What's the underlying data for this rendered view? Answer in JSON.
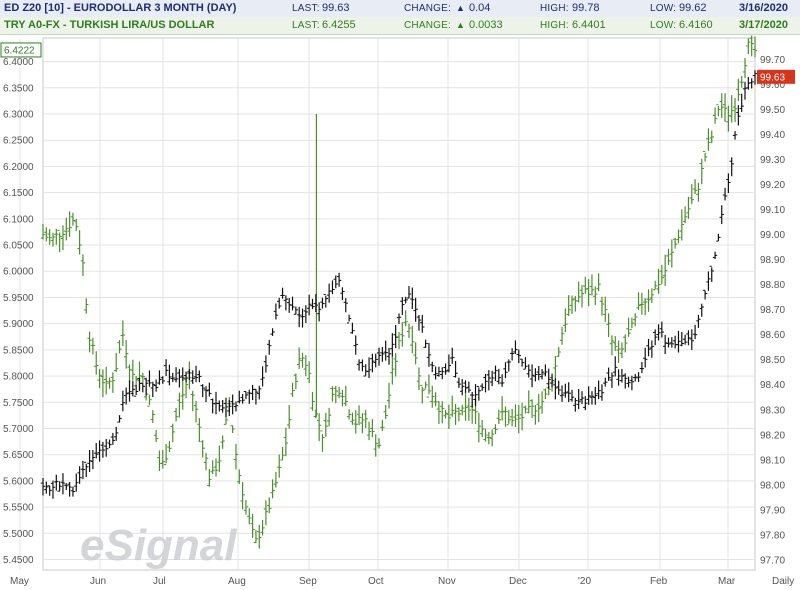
{
  "header_line1": {
    "symbol": "ED Z20 [10] - EURODOLLAR 3 MONTH (DAY)",
    "last_label": "LAST:",
    "last_value": "99.63",
    "change_label": "CHANGE:",
    "change_value": "0.04",
    "high_label": "HIGH:",
    "high_value": "99.78",
    "low_label": "LOW:",
    "low_value": "99.62",
    "date": "3/16/2020",
    "color": "#1f2d6e"
  },
  "header_line2": {
    "symbol": "TRY A0-FX - TURKISH LIRA/US DOLLAR",
    "last_label": "LAST:",
    "last_value": "6.4255",
    "change_label": "CHANGE:",
    "change_value": "0.0033",
    "high_label": "HIGH:",
    "high_value": "6.4401",
    "low_label": "LOW:",
    "low_value": "6.4160",
    "date": "3/17/2020",
    "color": "#2e7d1f"
  },
  "watermark": "eSignal",
  "chart_data": {
    "type": "line",
    "style": "ohlc-bars",
    "grid": true,
    "x_tick_labels": [
      "May",
      "Jun",
      "Jul",
      "Aug",
      "Sep",
      "Oct",
      "Nov",
      "Dec",
      "'20",
      "Feb",
      "Mar",
      "Daily"
    ],
    "left_axis": {
      "ticks": [
        "6.4000",
        "6.3500",
        "6.3000",
        "6.2500",
        "6.2000",
        "6.1500",
        "6.1000",
        "6.0500",
        "6.0000",
        "5.9500",
        "5.9000",
        "5.8500",
        "5.8000",
        "5.7500",
        "5.7000",
        "5.6500",
        "5.6000",
        "5.5500",
        "5.5000",
        "5.4500"
      ],
      "range": [
        5.43,
        6.445
      ],
      "current_tag": "6.4222"
    },
    "right_axis": {
      "ticks": [
        "99.70",
        "99.60",
        "99.50",
        "99.40",
        "99.30",
        "99.20",
        "99.10",
        "99.00",
        "98.90",
        "98.80",
        "98.70",
        "98.60",
        "98.50",
        "98.40",
        "98.30",
        "98.20",
        "98.10",
        "98.00",
        "97.90",
        "97.80",
        "97.70"
      ],
      "range": [
        97.66,
        99.785
      ],
      "current_tag": "99.63"
    },
    "series": [
      {
        "name": "TRY A0-FX - TURKISH LIRA/US DOLLAR",
        "axis": "left",
        "color": "#4a8f2a",
        "anchors": [
          [
            0,
            6.07
          ],
          [
            0.012,
            6.06
          ],
          [
            0.03,
            6.08
          ],
          [
            0.045,
            6.1
          ],
          [
            0.055,
            6.03
          ],
          [
            0.065,
            5.88
          ],
          [
            0.075,
            5.82
          ],
          [
            0.088,
            5.78
          ],
          [
            0.1,
            5.8
          ],
          [
            0.112,
            5.88
          ],
          [
            0.125,
            5.8
          ],
          [
            0.14,
            5.8
          ],
          [
            0.155,
            5.72
          ],
          [
            0.165,
            5.62
          ],
          [
            0.178,
            5.67
          ],
          [
            0.19,
            5.74
          ],
          [
            0.205,
            5.8
          ],
          [
            0.22,
            5.7
          ],
          [
            0.235,
            5.6
          ],
          [
            0.25,
            5.65
          ],
          [
            0.262,
            5.75
          ],
          [
            0.273,
            5.63
          ],
          [
            0.285,
            5.55
          ],
          [
            0.298,
            5.48
          ],
          [
            0.31,
            5.52
          ],
          [
            0.322,
            5.57
          ],
          [
            0.332,
            5.62
          ],
          [
            0.342,
            5.68
          ],
          [
            0.352,
            5.78
          ],
          [
            0.362,
            5.84
          ],
          [
            0.372,
            5.82
          ],
          [
            0.382,
            5.73
          ],
          [
            0.395,
            5.68
          ],
          [
            0.405,
            5.76
          ],
          [
            0.418,
            5.78
          ],
          [
            0.428,
            5.74
          ],
          [
            0.44,
            5.71
          ],
          [
            0.452,
            5.72
          ],
          [
            0.462,
            5.69
          ],
          [
            0.472,
            5.67
          ],
          [
            0.482,
            5.73
          ],
          [
            0.49,
            5.8
          ],
          [
            0.5,
            5.86
          ],
          [
            0.51,
            5.91
          ],
          [
            0.52,
            5.87
          ],
          [
            0.53,
            5.78
          ],
          [
            0.54,
            5.78
          ],
          [
            0.55,
            5.76
          ],
          [
            0.56,
            5.73
          ],
          [
            0.57,
            5.72
          ],
          [
            0.58,
            5.73
          ],
          [
            0.59,
            5.73
          ],
          [
            0.6,
            5.74
          ],
          [
            0.61,
            5.72
          ],
          [
            0.62,
            5.69
          ],
          [
            0.63,
            5.69
          ],
          [
            0.64,
            5.72
          ],
          [
            0.65,
            5.73
          ],
          [
            0.66,
            5.71
          ],
          [
            0.67,
            5.72
          ],
          [
            0.68,
            5.73
          ],
          [
            0.69,
            5.74
          ],
          [
            0.7,
            5.75
          ],
          [
            0.71,
            5.77
          ],
          [
            0.72,
            5.82
          ],
          [
            0.73,
            5.89
          ],
          [
            0.74,
            5.93
          ],
          [
            0.75,
            5.95
          ],
          [
            0.76,
            5.96
          ],
          [
            0.77,
            5.96
          ],
          [
            0.78,
            5.97
          ],
          [
            0.79,
            5.92
          ],
          [
            0.8,
            5.86
          ],
          [
            0.81,
            5.84
          ],
          [
            0.82,
            5.87
          ],
          [
            0.83,
            5.9
          ],
          [
            0.84,
            5.94
          ],
          [
            0.85,
            5.95
          ],
          [
            0.86,
            5.97
          ],
          [
            0.87,
            5.99
          ],
          [
            0.88,
            6.02
          ],
          [
            0.89,
            6.06
          ],
          [
            0.9,
            6.1
          ],
          [
            0.91,
            6.13
          ],
          [
            0.92,
            6.16
          ],
          [
            0.93,
            6.22
          ],
          [
            0.94,
            6.26
          ],
          [
            0.95,
            6.32
          ],
          [
            0.96,
            6.3
          ],
          [
            0.97,
            6.31
          ],
          [
            0.98,
            6.36
          ],
          [
            0.99,
            6.43
          ],
          [
            1.0,
            6.42
          ]
        ],
        "spikes": [
          [
            0.384,
            6.3
          ]
        ]
      },
      {
        "name": "ED Z20 [10] - EURODOLLAR 3 MONTH (DAY)",
        "axis": "right",
        "color": "#111111",
        "anchors": [
          [
            0,
            97.98
          ],
          [
            0.015,
            97.99
          ],
          [
            0.028,
            98.02
          ],
          [
            0.04,
            97.97
          ],
          [
            0.055,
            98.05
          ],
          [
            0.07,
            98.12
          ],
          [
            0.085,
            98.15
          ],
          [
            0.1,
            98.18
          ],
          [
            0.115,
            98.35
          ],
          [
            0.13,
            98.38
          ],
          [
            0.145,
            98.42
          ],
          [
            0.16,
            98.4
          ],
          [
            0.175,
            98.45
          ],
          [
            0.19,
            98.42
          ],
          [
            0.205,
            98.45
          ],
          [
            0.22,
            98.42
          ],
          [
            0.235,
            98.35
          ],
          [
            0.25,
            98.3
          ],
          [
            0.265,
            98.32
          ],
          [
            0.28,
            98.34
          ],
          [
            0.295,
            98.37
          ],
          [
            0.305,
            98.38
          ],
          [
            0.315,
            98.5
          ],
          [
            0.325,
            98.65
          ],
          [
            0.335,
            98.75
          ],
          [
            0.345,
            98.72
          ],
          [
            0.355,
            98.7
          ],
          [
            0.365,
            98.68
          ],
          [
            0.375,
            98.72
          ],
          [
            0.385,
            98.7
          ],
          [
            0.395,
            98.75
          ],
          [
            0.405,
            98.77
          ],
          [
            0.415,
            98.82
          ],
          [
            0.425,
            98.72
          ],
          [
            0.435,
            98.62
          ],
          [
            0.445,
            98.48
          ],
          [
            0.455,
            98.45
          ],
          [
            0.465,
            98.5
          ],
          [
            0.475,
            98.54
          ],
          [
            0.485,
            98.52
          ],
          [
            0.495,
            98.6
          ],
          [
            0.505,
            98.73
          ],
          [
            0.515,
            98.76
          ],
          [
            0.525,
            98.7
          ],
          [
            0.535,
            98.6
          ],
          [
            0.545,
            98.48
          ],
          [
            0.555,
            98.44
          ],
          [
            0.565,
            98.45
          ],
          [
            0.575,
            98.5
          ],
          [
            0.585,
            98.4
          ],
          [
            0.595,
            98.38
          ],
          [
            0.605,
            98.35
          ],
          [
            0.615,
            98.38
          ],
          [
            0.625,
            98.42
          ],
          [
            0.635,
            98.45
          ],
          [
            0.645,
            98.42
          ],
          [
            0.655,
            98.5
          ],
          [
            0.665,
            98.53
          ],
          [
            0.675,
            98.48
          ],
          [
            0.685,
            98.45
          ],
          [
            0.695,
            98.43
          ],
          [
            0.705,
            98.44
          ],
          [
            0.715,
            98.42
          ],
          [
            0.725,
            98.38
          ],
          [
            0.735,
            98.36
          ],
          [
            0.745,
            98.34
          ],
          [
            0.755,
            98.33
          ],
          [
            0.765,
            98.34
          ],
          [
            0.775,
            98.36
          ],
          [
            0.785,
            98.38
          ],
          [
            0.795,
            98.43
          ],
          [
            0.805,
            98.46
          ],
          [
            0.815,
            98.42
          ],
          [
            0.825,
            98.42
          ],
          [
            0.835,
            98.43
          ],
          [
            0.845,
            98.5
          ],
          [
            0.855,
            98.55
          ],
          [
            0.865,
            98.62
          ],
          [
            0.875,
            98.57
          ],
          [
            0.885,
            98.55
          ],
          [
            0.895,
            98.58
          ],
          [
            0.905,
            98.57
          ],
          [
            0.915,
            98.59
          ],
          [
            0.925,
            98.72
          ],
          [
            0.935,
            98.82
          ],
          [
            0.945,
            98.92
          ],
          [
            0.955,
            99.12
          ],
          [
            0.965,
            99.25
          ],
          [
            0.975,
            99.45
          ],
          [
            0.985,
            99.57
          ],
          [
            0.993,
            99.62
          ],
          [
            1.0,
            99.63
          ]
        ]
      }
    ]
  }
}
